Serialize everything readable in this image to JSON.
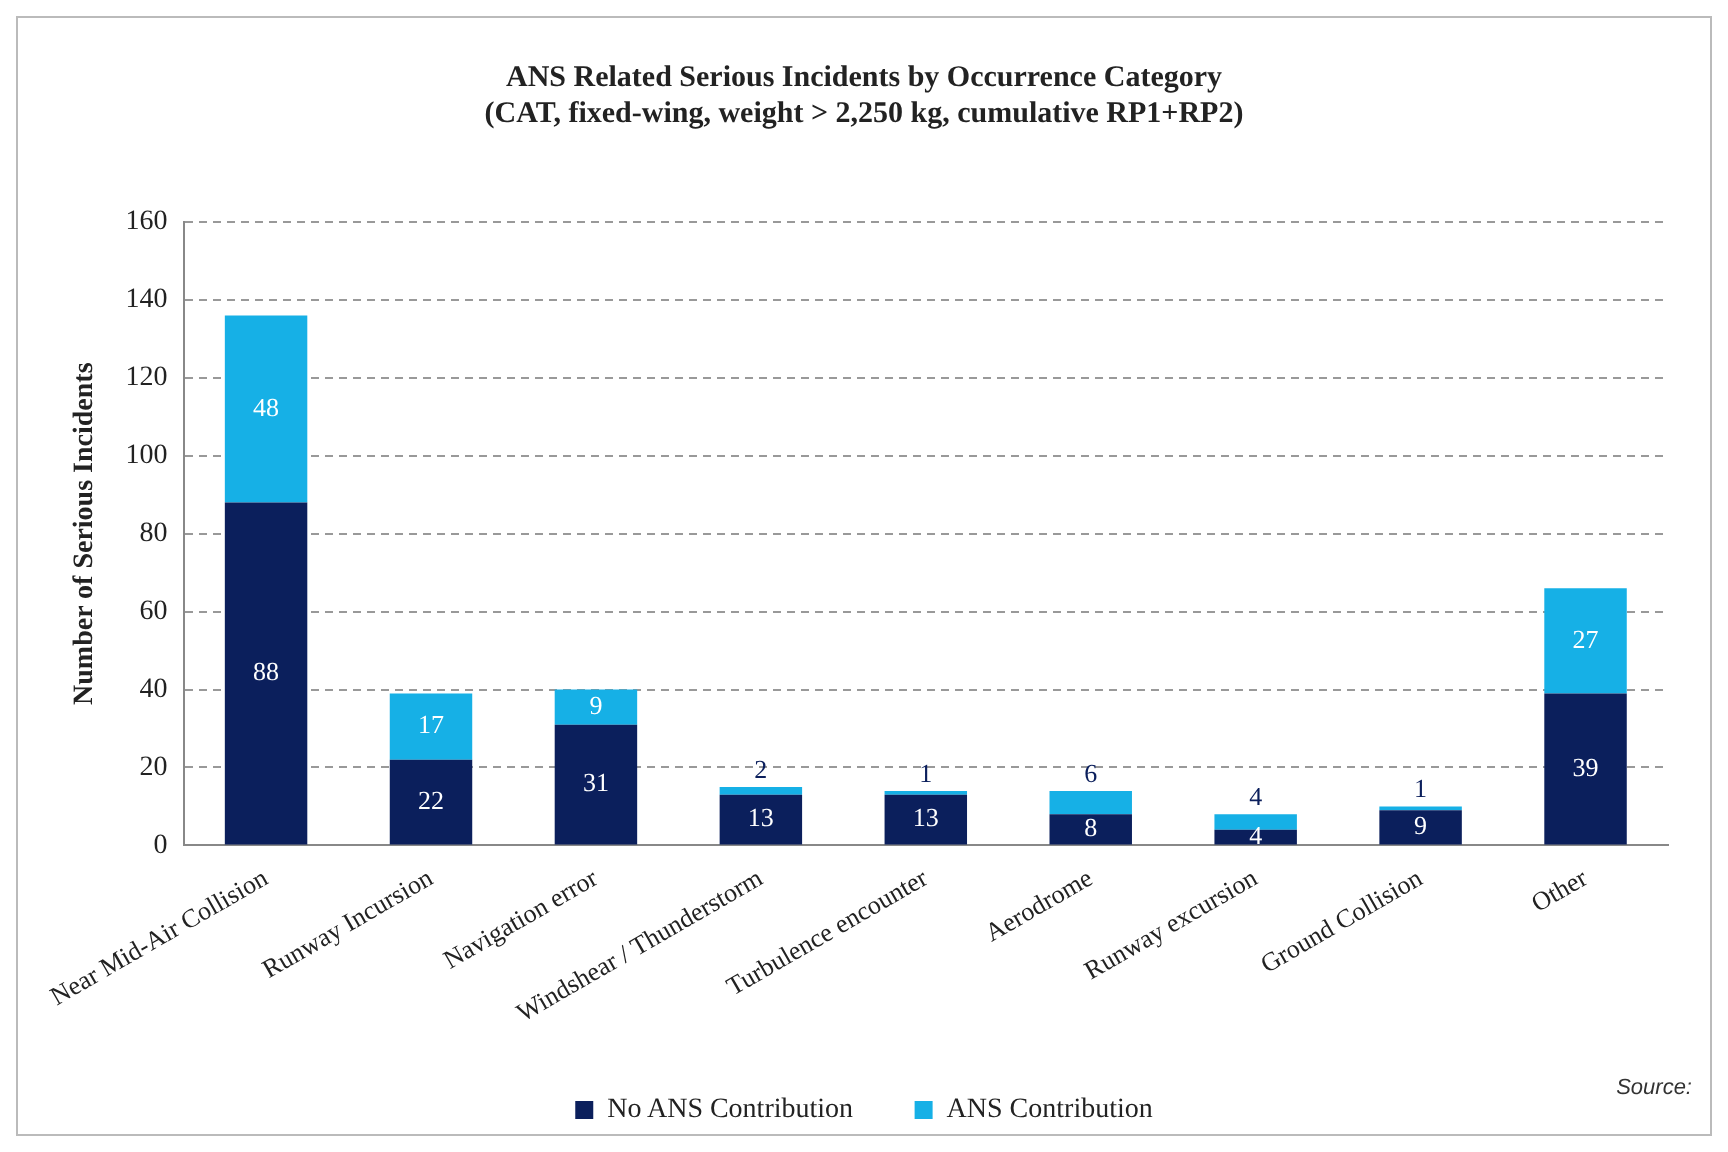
{
  "chart_data": {
    "type": "bar",
    "title": "ANS Related Serious Incidents by Occurrence Category",
    "subtitle": "(CAT, fixed-wing, weight > 2,250 kg, cumulative RP1+RP2)",
    "ylabel": "Number of Serious Incidents",
    "categories": [
      "Near Mid-Air Collision",
      "Runway Incursion",
      "Navigation error",
      "Windshear / Thunderstorm",
      "Turbulence encounter",
      "Aerodrome",
      "Runway excursion",
      "Ground Collision",
      "Other"
    ],
    "series": [
      {
        "name": "No ANS Contribution",
        "color": "#0b1f5c",
        "values": [
          88,
          22,
          31,
          13,
          13,
          8,
          4,
          9,
          39
        ]
      },
      {
        "name": "ANS Contribution",
        "color": "#16b0e6",
        "values": [
          48,
          17,
          9,
          2,
          1,
          6,
          4,
          1,
          27
        ]
      }
    ],
    "stacked": true,
    "ylim": [
      0,
      160
    ],
    "yticks": [
      0,
      20,
      40,
      60,
      80,
      100,
      120,
      140,
      160
    ],
    "grid": "y",
    "legend": "bottom",
    "data_labels": true,
    "annotations": [
      "Source:"
    ]
  }
}
